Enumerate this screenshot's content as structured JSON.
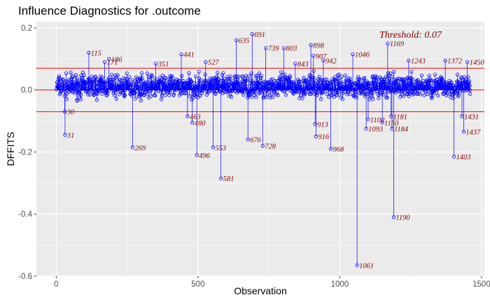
{
  "chart_data": {
    "type": "scatter",
    "title": "Influence Diagnostics for .outcome",
    "xlabel": "Observation",
    "ylabel": "DFFITS",
    "xlim": [
      -70,
      1510
    ],
    "ylim": [
      -0.6,
      0.22
    ],
    "x_ticks": [
      0,
      500,
      1000,
      1500
    ],
    "y_ticks": [
      -0.6,
      -0.4,
      -0.2,
      0.0,
      0.2
    ],
    "x_tick_labels": [
      "0",
      "500",
      "1000",
      "1500"
    ],
    "y_tick_labels": [
      "-0.6",
      "-0.4",
      "-0.2",
      "0.0",
      "0.2"
    ],
    "threshold": 0.07,
    "threshold_label": "Threshold: 0.07",
    "n_observations": 1460,
    "point_color": "#0000ff",
    "threshold_color": "#ff0000",
    "label_color": "#8b0000",
    "panel_color": "#ebebeb",
    "grid": true,
    "labeled_points": [
      {
        "x": 30,
        "y": -0.07,
        "label": "30"
      },
      {
        "x": 31,
        "y": -0.145,
        "label": "31"
      },
      {
        "x": 115,
        "y": 0.12,
        "label": "115"
      },
      {
        "x": 171,
        "y": 0.09,
        "label": "171"
      },
      {
        "x": 186,
        "y": 0.1,
        "label": "186"
      },
      {
        "x": 269,
        "y": -0.185,
        "label": "269"
      },
      {
        "x": 351,
        "y": 0.085,
        "label": "351"
      },
      {
        "x": 441,
        "y": 0.115,
        "label": "441"
      },
      {
        "x": 463,
        "y": -0.085,
        "label": "463"
      },
      {
        "x": 480,
        "y": -0.105,
        "label": "480"
      },
      {
        "x": 496,
        "y": -0.21,
        "label": "496"
      },
      {
        "x": 527,
        "y": 0.09,
        "label": "527"
      },
      {
        "x": 553,
        "y": -0.185,
        "label": "553"
      },
      {
        "x": 581,
        "y": -0.285,
        "label": "581"
      },
      {
        "x": 635,
        "y": 0.16,
        "label": "635"
      },
      {
        "x": 676,
        "y": -0.16,
        "label": "676"
      },
      {
        "x": 691,
        "y": 0.18,
        "label": "691"
      },
      {
        "x": 728,
        "y": -0.18,
        "label": "728"
      },
      {
        "x": 739,
        "y": 0.135,
        "label": "739"
      },
      {
        "x": 803,
        "y": 0.135,
        "label": "803"
      },
      {
        "x": 843,
        "y": 0.085,
        "label": "843"
      },
      {
        "x": 898,
        "y": 0.145,
        "label": "898"
      },
      {
        "x": 907,
        "y": 0.11,
        "label": "907"
      },
      {
        "x": 913,
        "y": -0.11,
        "label": "913"
      },
      {
        "x": 916,
        "y": -0.15,
        "label": "916"
      },
      {
        "x": 942,
        "y": 0.095,
        "label": "942"
      },
      {
        "x": 968,
        "y": -0.19,
        "label": "968"
      },
      {
        "x": 1046,
        "y": 0.115,
        "label": "1046"
      },
      {
        "x": 1061,
        "y": -0.565,
        "label": "1061"
      },
      {
        "x": 1093,
        "y": -0.125,
        "label": "1093"
      },
      {
        "x": 1100,
        "y": -0.095,
        "label": "1100"
      },
      {
        "x": 1150,
        "y": -0.105,
        "label": "1150"
      },
      {
        "x": 1169,
        "y": 0.15,
        "label": "1169"
      },
      {
        "x": 1181,
        "y": -0.085,
        "label": "1181"
      },
      {
        "x": 1184,
        "y": -0.125,
        "label": "1184"
      },
      {
        "x": 1190,
        "y": -0.41,
        "label": "1190"
      },
      {
        "x": 1243,
        "y": 0.095,
        "label": "1243"
      },
      {
        "x": 1372,
        "y": 0.095,
        "label": "1372"
      },
      {
        "x": 1403,
        "y": -0.215,
        "label": "1403"
      },
      {
        "x": 1431,
        "y": -0.085,
        "label": "1431"
      },
      {
        "x": 1437,
        "y": -0.135,
        "label": "1437"
      },
      {
        "x": 1450,
        "y": 0.09,
        "label": "1450"
      }
    ]
  }
}
